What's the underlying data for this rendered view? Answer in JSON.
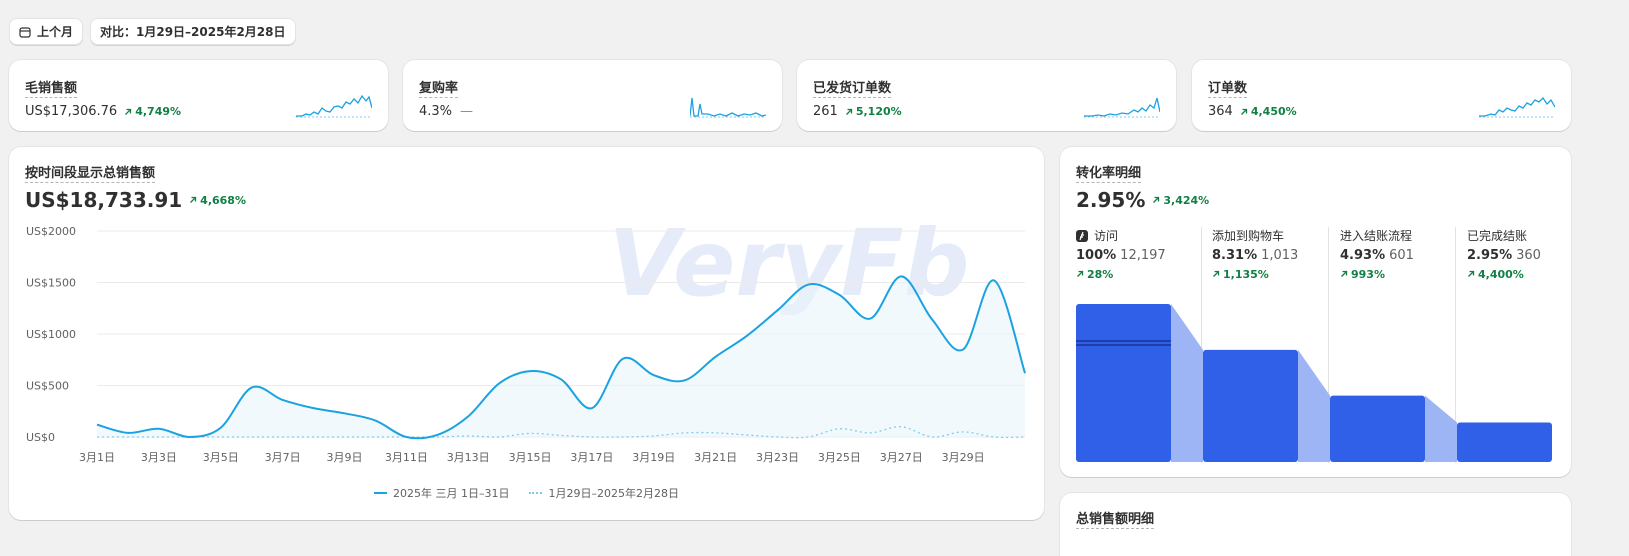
{
  "filters": {
    "period_label": "上个月",
    "compare_label": "对比：1月29日–2025年2月28日"
  },
  "kpis": [
    {
      "title": "毛销售额",
      "value": "US$17,306.76",
      "change": "4,749%"
    },
    {
      "title": "复购率",
      "value": "4.3%",
      "change": "—"
    },
    {
      "title": "已发货订单数",
      "value": "261",
      "change": "5,120%"
    },
    {
      "title": "订单数",
      "value": "364",
      "change": "4,450%"
    }
  ],
  "sales_chart": {
    "title": "按时间段显示总销售额",
    "total": "US$18,733.91",
    "change": "4,668%",
    "legend_current": "2025年 三月 1日–31日",
    "legend_previous": "1月29日–2025年2月28日",
    "watermark": "VeryFb"
  },
  "chart_data": {
    "type": "line",
    "x": [
      "3月1日",
      "3月2日",
      "3月3日",
      "3月4日",
      "3月5日",
      "3月6日",
      "3月7日",
      "3月8日",
      "3月9日",
      "3月10日",
      "3月11日",
      "3月12日",
      "3月13日",
      "3月14日",
      "3月15日",
      "3月16日",
      "3月17日",
      "3月18日",
      "3月19日",
      "3月20日",
      "3月21日",
      "3月22日",
      "3月23日",
      "3月24日",
      "3月25日",
      "3月26日",
      "3月27日",
      "3月28日",
      "3月29日",
      "3月30日",
      "3月31日"
    ],
    "x_tick_labels": [
      "3月1日",
      "3月3日",
      "3月5日",
      "3月7日",
      "3月9日",
      "3月11日",
      "3月13日",
      "3月15日",
      "3月17日",
      "3月19日",
      "3月21日",
      "3月23日",
      "3月25日",
      "3月27日",
      "3月29日"
    ],
    "y_tick_labels": [
      "US$0",
      "US$500",
      "US$1000",
      "US$1500",
      "US$2000"
    ],
    "ylim": [
      0,
      2000
    ],
    "series": [
      {
        "name": "2025年 三月 1日–31日",
        "values": [
          120,
          40,
          80,
          0,
          90,
          480,
          360,
          280,
          230,
          160,
          0,
          20,
          200,
          520,
          640,
          560,
          280,
          760,
          600,
          550,
          780,
          980,
          1230,
          1480,
          1380,
          1150,
          1560,
          1140,
          850,
          1520,
          620
        ]
      },
      {
        "name": "1月29日–2025年2月28日",
        "values": [
          0,
          0,
          0,
          0,
          0,
          0,
          0,
          0,
          0,
          0,
          0,
          0,
          10,
          0,
          35,
          15,
          0,
          0,
          10,
          40,
          40,
          20,
          0,
          0,
          80,
          40,
          100,
          0,
          50,
          0,
          0
        ]
      }
    ],
    "grid": true
  },
  "conversion": {
    "title": "转化率明细",
    "rate": "2.95%",
    "change": "3,424%",
    "stages": [
      {
        "label": "访问",
        "pct": "100%",
        "count": "12,197",
        "change": "28%",
        "level": 1.0
      },
      {
        "label": "添加到购物车",
        "pct": "8.31%",
        "count": "1,013",
        "change": "1,135%",
        "level": 0.71
      },
      {
        "label": "进入结账流程",
        "pct": "4.93%",
        "count": "601",
        "change": "993%",
        "level": 0.42
      },
      {
        "label": "已完成结账",
        "pct": "2.95%",
        "count": "360",
        "change": "4,400%",
        "level": 0.25
      }
    ]
  },
  "breakdown": {
    "title": "总销售额明细"
  },
  "colors": {
    "line": "#1ba2e1",
    "funnel": "#305fe8",
    "funnel_light": "#9db5f4",
    "positive": "#108043"
  }
}
